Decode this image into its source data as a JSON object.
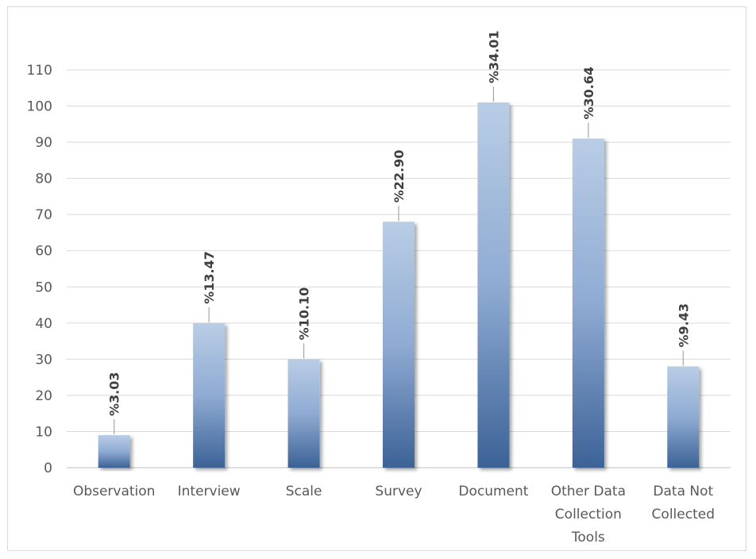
{
  "chart_data": {
    "type": "bar",
    "categories": [
      [
        "Observation"
      ],
      [
        "Interview"
      ],
      [
        "Scale"
      ],
      [
        "Survey"
      ],
      [
        "Document"
      ],
      [
        "Other Data",
        "Collection",
        "Tools"
      ],
      [
        "Data Not",
        "Collected"
      ]
    ],
    "values": [
      9,
      40,
      30,
      68,
      101,
      91,
      28
    ],
    "data_labels": [
      "%3.03",
      "%13.47",
      "%10.10",
      "%22.90",
      "%34.01",
      "%30.64",
      "%9.43"
    ],
    "title": "",
    "xlabel": "",
    "ylabel": "",
    "ylim": [
      0,
      110
    ],
    "yticks": [
      0,
      10,
      20,
      30,
      40,
      50,
      60,
      70,
      80,
      90,
      100,
      110
    ],
    "grid": true,
    "legend": "none",
    "colors": {
      "bar_top": "#b9cde5",
      "bar_bottom": "#3c6296",
      "grid": "#d9d9d9",
      "axis": "#bfbfbf",
      "leader": "#a6a6a6"
    }
  }
}
